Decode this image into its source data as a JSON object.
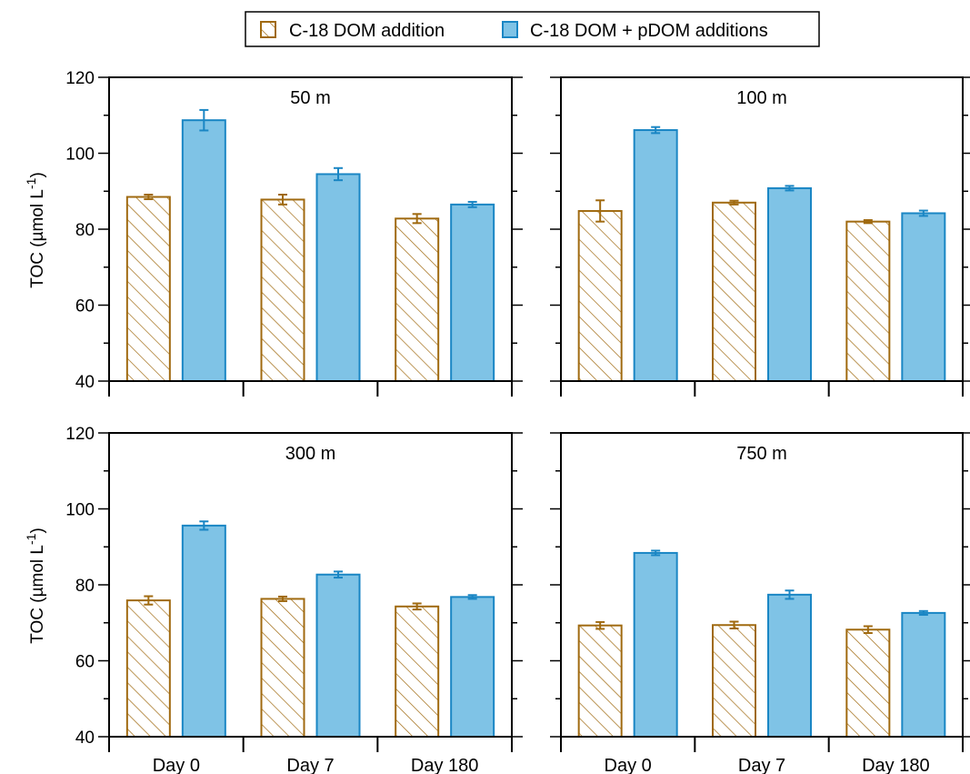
{
  "legend": {
    "items": [
      {
        "label": "C-18 DOM addition",
        "style": "hatched",
        "color": "#a06a10"
      },
      {
        "label": "C-18 DOM + pDOM additions",
        "style": "filled",
        "color": "#1a86c4",
        "fill": "#7fc3e6"
      }
    ]
  },
  "ylabel": {
    "main": "TOC (µmol L",
    "sup": "-1",
    "close": ")"
  },
  "chart_data": [
    {
      "type": "bar",
      "title": "50 m",
      "categories": [
        "Day 0",
        "Day 7",
        "Day 180"
      ],
      "ylim": [
        40,
        120
      ],
      "yticks": [
        "40",
        "60",
        "80",
        "100",
        "120"
      ],
      "series": [
        {
          "name": "C-18 DOM addition",
          "values": [
            88.5,
            87.8,
            82.8
          ],
          "errors": [
            0.6,
            1.3,
            1.2
          ]
        },
        {
          "name": "C-18 DOM + pDOM additions",
          "values": [
            108.7,
            94.5,
            86.5
          ],
          "errors": [
            2.7,
            1.6,
            0.7
          ]
        }
      ]
    },
    {
      "type": "bar",
      "title": "100 m",
      "categories": [
        "Day 0",
        "Day 7",
        "Day 180"
      ],
      "ylim": [
        40,
        120
      ],
      "yticks": [
        "40",
        "60",
        "80",
        "100",
        "120"
      ],
      "series": [
        {
          "name": "C-18 DOM addition",
          "values": [
            84.8,
            87.0,
            82.0
          ],
          "errors": [
            2.8,
            0.5,
            0.4
          ]
        },
        {
          "name": "C-18 DOM + pDOM additions",
          "values": [
            106.1,
            90.8,
            84.2
          ],
          "errors": [
            0.8,
            0.6,
            0.7
          ]
        }
      ]
    },
    {
      "type": "bar",
      "title": "300 m",
      "categories": [
        "Day 0",
        "Day 7",
        "Day 180"
      ],
      "ylim": [
        40,
        120
      ],
      "yticks": [
        "40",
        "60",
        "80",
        "100",
        "120"
      ],
      "series": [
        {
          "name": "C-18 DOM addition",
          "values": [
            75.9,
            76.3,
            74.3
          ],
          "errors": [
            1.1,
            0.6,
            0.8
          ]
        },
        {
          "name": "C-18 DOM + pDOM additions",
          "values": [
            95.6,
            82.7,
            76.8
          ],
          "errors": [
            1.1,
            0.8,
            0.5
          ]
        }
      ]
    },
    {
      "type": "bar",
      "title": "750 m",
      "categories": [
        "Day 0",
        "Day 7",
        "Day 180"
      ],
      "ylim": [
        40,
        120
      ],
      "yticks": [
        "40",
        "60",
        "80",
        "100",
        "120"
      ],
      "series": [
        {
          "name": "C-18 DOM addition",
          "values": [
            69.3,
            69.4,
            68.2
          ],
          "errors": [
            0.9,
            0.9,
            0.9
          ]
        },
        {
          "name": "C-18 DOM + pDOM additions",
          "values": [
            88.4,
            77.4,
            72.6
          ],
          "errors": [
            0.6,
            1.1,
            0.5
          ]
        }
      ]
    }
  ]
}
